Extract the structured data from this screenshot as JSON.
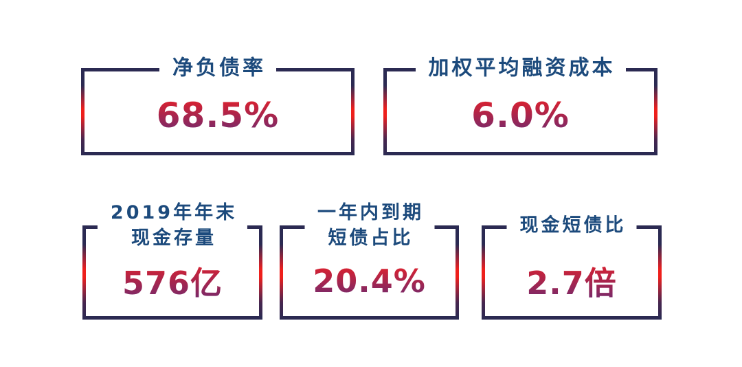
{
  "colors": {
    "background": "#ffffff",
    "border_navy": "#2b2a52",
    "border_red": "#ee1f1b",
    "title_blue": "#1c4a7c",
    "value_red_top": "#e2202a",
    "value_purple_bottom": "#6e2a70"
  },
  "metrics": [
    {
      "id": "net-debt-ratio",
      "title_lines": [
        "净负债率"
      ],
      "value": "68.5%"
    },
    {
      "id": "weighted-avg-financing-cost",
      "title_lines": [
        "加权平均融资成本"
      ],
      "value": "6.0%"
    },
    {
      "id": "cash-reserve-2019-year-end",
      "title_lines": [
        "2019年年末",
        "现金存量"
      ],
      "value": "576亿"
    },
    {
      "id": "short-debt-due-1y-ratio",
      "title_lines": [
        "一年内到期",
        "短债占比"
      ],
      "value": "20.4%"
    },
    {
      "id": "cash-to-short-debt-ratio",
      "title_lines": [
        "现金短债比"
      ],
      "value": "2.7倍"
    }
  ],
  "chart_data": {
    "type": "table",
    "title": "",
    "categories": [
      "净负债率",
      "加权平均融资成本",
      "2019年年末现金存量",
      "一年内到期短债占比",
      "现金短债比"
    ],
    "values": [
      68.5,
      6.0,
      576,
      20.4,
      2.7
    ],
    "value_labels": [
      "68.5%",
      "6.0%",
      "576亿",
      "20.4%",
      "2.7倍"
    ],
    "units": [
      "%",
      "%",
      "亿",
      "%",
      "倍"
    ],
    "legend_position": "none",
    "grid": false
  }
}
